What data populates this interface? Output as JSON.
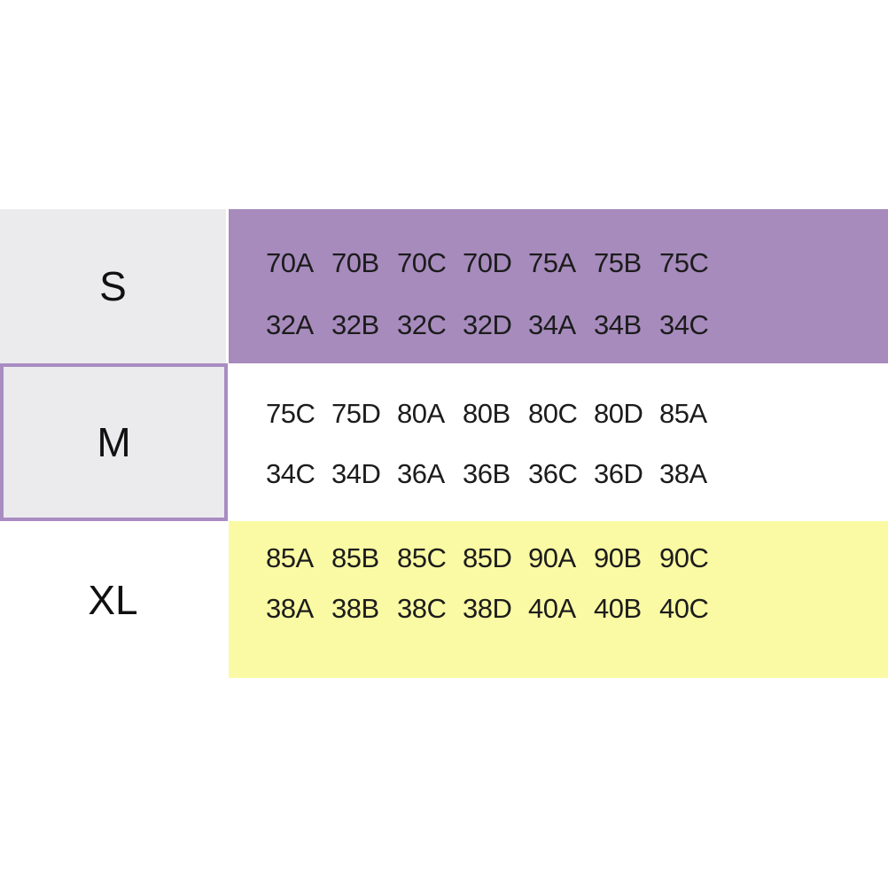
{
  "chart_data": {
    "type": "table",
    "title": "",
    "description_colors": {
      "s_band_purple": "#a78bbd",
      "m_cell_border_purple": "#a98cc2",
      "label_cell_gray": "#ebebed",
      "xl_band_yellow": "#fafaa4",
      "text": "#1c1c1c",
      "background": "#ffffff"
    },
    "rows": [
      {
        "label": "S",
        "line1": [
          "70A",
          "70B",
          "70C",
          "70D",
          "75A",
          "75B",
          "75C"
        ],
        "line2": [
          "32A",
          "32B",
          "32C",
          "32D",
          "34A",
          "34B",
          "34C"
        ]
      },
      {
        "label": "M",
        "line1": [
          "75C",
          "75D",
          "80A",
          "80B",
          "80C",
          "80D",
          "85A"
        ],
        "line2": [
          "34C",
          "34D",
          "36A",
          "36B",
          "36C",
          "36D",
          "38A"
        ]
      },
      {
        "label": "XL",
        "line1": [
          "85A",
          "85B",
          "85C",
          "85D",
          "90A",
          "90B",
          "90C"
        ],
        "line2": [
          "38A",
          "38B",
          "38C",
          "38D",
          "40A",
          "40B",
          "40C"
        ]
      }
    ]
  }
}
